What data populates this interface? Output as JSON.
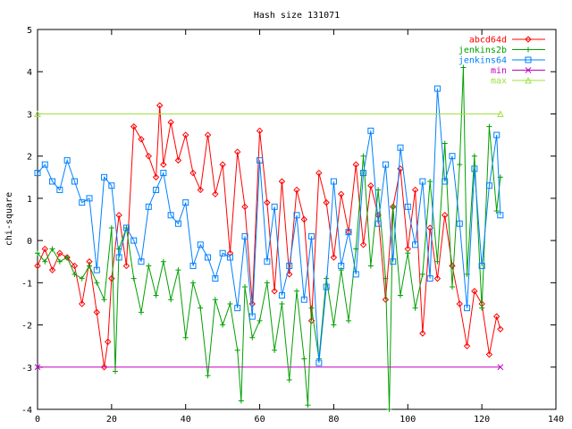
{
  "chart_data": {
    "type": "line",
    "title": "Hash size 131071",
    "xlabel": "",
    "ylabel": "chi-square",
    "xlim": [
      0,
      140
    ],
    "ylim": [
      -4,
      5
    ],
    "xticks": [
      0,
      20,
      40,
      60,
      80,
      100,
      120,
      140
    ],
    "yticks": [
      -4,
      -3,
      -2,
      -1,
      0,
      1,
      2,
      3,
      4,
      5
    ],
    "legend_position": "top-right",
    "grid": false,
    "series": [
      {
        "name": "abcd64d",
        "color": "#ff0000",
        "marker": "diamond",
        "x": [
          0,
          2,
          4,
          6,
          8,
          10,
          12,
          14,
          16,
          18,
          19,
          20,
          22,
          24,
          26,
          28,
          30,
          32,
          33,
          34,
          36,
          38,
          40,
          42,
          44,
          46,
          48,
          50,
          52,
          54,
          56,
          58,
          60,
          62,
          64,
          66,
          68,
          70,
          72,
          74,
          76,
          78,
          80,
          82,
          84,
          86,
          88,
          90,
          92,
          94,
          96,
          98,
          100,
          102,
          104,
          106,
          108,
          110,
          112,
          114,
          116,
          118,
          120,
          122,
          124,
          125
        ],
        "y": [
          -0.6,
          -0.2,
          -0.7,
          -0.3,
          -0.4,
          -0.6,
          -1.5,
          -0.5,
          -1.7,
          -3.0,
          -2.4,
          -0.9,
          0.6,
          -0.6,
          2.7,
          2.4,
          2.0,
          1.5,
          3.2,
          1.8,
          2.8,
          1.9,
          2.5,
          1.6,
          1.2,
          2.5,
          1.1,
          1.8,
          -0.3,
          2.1,
          0.8,
          -1.5,
          2.6,
          0.9,
          -1.2,
          1.4,
          -0.8,
          1.2,
          0.5,
          -1.9,
          1.6,
          0.9,
          -0.4,
          1.1,
          0.2,
          1.8,
          -0.1,
          1.3,
          0.6,
          -1.4,
          0.8,
          1.7,
          -0.2,
          1.2,
          -2.2,
          0.3,
          -0.9,
          0.6,
          -0.6,
          -1.5,
          -2.5,
          -1.2,
          -1.5,
          -2.7,
          -1.8,
          -2.1
        ]
      },
      {
        "name": "jenkins2b",
        "color": "#00a000",
        "marker": "plus",
        "x": [
          0,
          2,
          4,
          6,
          8,
          10,
          12,
          14,
          16,
          18,
          20,
          21,
          22,
          24,
          26,
          28,
          30,
          32,
          34,
          36,
          38,
          40,
          42,
          44,
          46,
          48,
          50,
          52,
          54,
          55,
          56,
          58,
          60,
          62,
          64,
          66,
          68,
          70,
          72,
          73,
          74,
          76,
          78,
          80,
          82,
          84,
          86,
          88,
          90,
          92,
          94,
          95,
          96,
          98,
          100,
          102,
          104,
          106,
          108,
          110,
          112,
          114,
          115,
          116,
          118,
          120,
          122,
          124,
          125
        ],
        "y": [
          -0.3,
          -0.5,
          -0.2,
          -0.5,
          -0.4,
          -0.8,
          -0.9,
          -0.6,
          -1.0,
          -1.4,
          0.3,
          -3.1,
          -0.2,
          0.3,
          -0.9,
          -1.7,
          -0.6,
          -1.3,
          -0.5,
          -1.4,
          -0.7,
          -2.3,
          -1.0,
          -1.6,
          -3.2,
          -1.4,
          -2.0,
          -1.5,
          -2.6,
          -3.8,
          -1.1,
          -2.3,
          -1.9,
          -1.0,
          -2.6,
          -1.5,
          -3.3,
          -1.2,
          -2.8,
          -3.9,
          -1.6,
          -2.8,
          -0.9,
          -2.0,
          -0.7,
          -1.9,
          -0.2,
          2.0,
          -0.6,
          1.2,
          -0.9,
          -4.0,
          0.8,
          -1.3,
          -0.3,
          -1.6,
          -0.8,
          1.4,
          -0.5,
          2.3,
          -1.1,
          1.8,
          4.1,
          -0.8,
          2.0,
          -1.6,
          2.7,
          0.7,
          1.5
        ]
      },
      {
        "name": "jenkins64",
        "color": "#0080ff",
        "marker": "square",
        "x": [
          0,
          2,
          4,
          6,
          8,
          10,
          12,
          14,
          16,
          18,
          20,
          22,
          24,
          26,
          28,
          30,
          32,
          34,
          36,
          38,
          40,
          42,
          44,
          46,
          48,
          50,
          52,
          54,
          56,
          58,
          60,
          62,
          64,
          66,
          68,
          70,
          72,
          74,
          76,
          78,
          80,
          82,
          84,
          86,
          88,
          90,
          92,
          94,
          96,
          98,
          100,
          102,
          104,
          106,
          108,
          110,
          112,
          114,
          116,
          118,
          120,
          122,
          124,
          125
        ],
        "y": [
          1.6,
          1.8,
          1.4,
          1.2,
          1.9,
          1.4,
          0.9,
          1.0,
          -0.7,
          1.5,
          1.3,
          -0.4,
          0.3,
          0.0,
          -0.5,
          0.8,
          1.2,
          1.6,
          0.6,
          0.4,
          0.9,
          -0.6,
          -0.1,
          -0.4,
          -0.9,
          -0.3,
          -0.4,
          -1.6,
          0.1,
          -1.8,
          1.9,
          -0.5,
          0.8,
          -1.3,
          -0.6,
          0.6,
          -1.4,
          0.1,
          -2.9,
          -1.1,
          1.4,
          -0.6,
          0.2,
          -0.8,
          1.6,
          2.6,
          0.4,
          1.8,
          -0.5,
          2.2,
          0.8,
          -0.1,
          1.4,
          -0.9,
          3.6,
          1.4,
          2.0,
          0.4,
          -1.6,
          1.7,
          -0.6,
          1.3,
          2.5,
          0.6
        ]
      },
      {
        "name": "min",
        "color": "#c000c0",
        "marker": "x",
        "x": [
          0,
          125
        ],
        "y": [
          -3.0,
          -3.0
        ]
      },
      {
        "name": "max",
        "color": "#a0e040",
        "marker": "triangle",
        "x": [
          0,
          125
        ],
        "y": [
          3.0,
          3.0
        ]
      }
    ]
  }
}
